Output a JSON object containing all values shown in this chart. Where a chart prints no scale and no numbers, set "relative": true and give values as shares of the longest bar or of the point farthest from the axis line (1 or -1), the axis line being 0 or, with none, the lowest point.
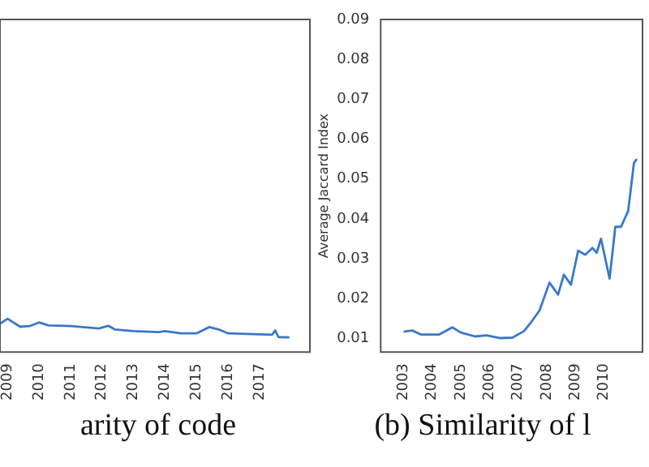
{
  "chart_data": [
    {
      "type": "line",
      "title": "arity of code",
      "relative": true,
      "tick_labels": "x",
      "x": [
        2008.76,
        2009.0,
        2009.4,
        2009.7,
        2010.0,
        2010.3,
        2011.0,
        2011.9,
        2012.2,
        2012.4,
        2013.0,
        2013.8,
        2014.0,
        2014.5,
        2015.0,
        2015.4,
        2015.7,
        2016.0,
        2017.0,
        2017.4,
        2017.5,
        2017.6,
        2017.95
      ],
      "series": [
        {
          "color": "#3a78c9",
          "values": [
            0.85,
            1,
            0.76,
            0.78,
            0.89,
            0.8,
            0.78,
            0.71,
            0.79,
            0.68,
            0.63,
            0.6,
            0.63,
            0.56,
            0.56,
            0.75,
            0.68,
            0.56,
            0.53,
            0.52,
            0.65,
            0.45,
            0.44
          ]
        }
      ],
      "xlim": [
        2008.76,
        2018.6
      ],
      "xticks": [
        2009,
        2010,
        2011,
        2012,
        2013,
        2014,
        2015,
        2016,
        2017
      ]
    },
    {
      "type": "line",
      "title": "(b) Similarity of l",
      "ylabel": "Average Jaccard Index",
      "x": [
        2003.0,
        2003.3,
        2003.6,
        2004.25,
        2004.7,
        2005.0,
        2005.5,
        2005.9,
        2006.35,
        2006.8,
        2007.2,
        2007.45,
        2007.75,
        2008.1,
        2008.4,
        2008.6,
        2008.85,
        2009.1,
        2009.35,
        2009.6,
        2009.75,
        2009.9,
        2010.2,
        2010.4,
        2010.6,
        2010.85,
        2011.05,
        2011.15
      ],
      "series": [
        {
          "color": "#3a78c9",
          "values": [
            0.0117,
            0.012,
            0.011,
            0.011,
            0.0128,
            0.0115,
            0.0105,
            0.0108,
            0.0101,
            0.0102,
            0.0118,
            0.014,
            0.017,
            0.024,
            0.021,
            0.026,
            0.0235,
            0.032,
            0.031,
            0.0327,
            0.0315,
            0.035,
            0.025,
            0.038,
            0.038,
            0.042,
            0.054,
            0.055
          ]
        }
      ],
      "xlim": [
        2002.2,
        2011.35
      ],
      "xticks": [
        2003,
        2004,
        2005,
        2006,
        2007,
        2008,
        2009,
        2010
      ],
      "ylim": [
        0.0066,
        0.09
      ],
      "yticks": [
        0.01,
        0.02,
        0.03,
        0.04,
        0.05,
        0.06,
        0.07,
        0.08,
        0.09
      ]
    }
  ]
}
